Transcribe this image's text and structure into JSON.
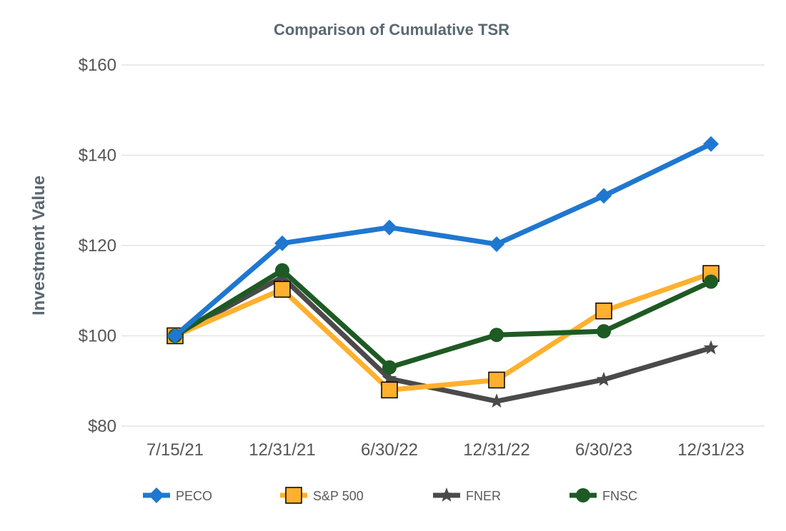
{
  "chart_data": {
    "type": "line",
    "title": "Comparison of Cumulative TSR",
    "xlabel": "",
    "ylabel": "Investment Value",
    "categories": [
      "7/15/21",
      "12/31/21",
      "6/30/22",
      "12/31/22",
      "6/30/23",
      "12/31/23"
    ],
    "ylim": [
      80,
      160
    ],
    "yticks": [
      80,
      100,
      120,
      140,
      160
    ],
    "ytick_labels": [
      "$80",
      "$100",
      "$120",
      "$140",
      "$160"
    ],
    "grid": true,
    "legend_position": "bottom",
    "series": [
      {
        "name": "PECO",
        "values": [
          100,
          120.5,
          124,
          120.3,
          131,
          142.5
        ],
        "color": "#1f77d0",
        "marker": "diamond"
      },
      {
        "name": "S&P 500",
        "values": [
          100,
          110.3,
          88,
          90.2,
          105.5,
          113.8
        ],
        "color": "#ffb02e",
        "marker": "square"
      },
      {
        "name": "FNER",
        "values": [
          100,
          113,
          90.5,
          85.5,
          90.3,
          97.3
        ],
        "color": "#4a4a4a",
        "marker": "star"
      },
      {
        "name": "FNSC",
        "values": [
          100,
          114.5,
          93,
          100.2,
          101,
          112
        ],
        "color": "#1e5a23",
        "marker": "circle"
      }
    ]
  }
}
